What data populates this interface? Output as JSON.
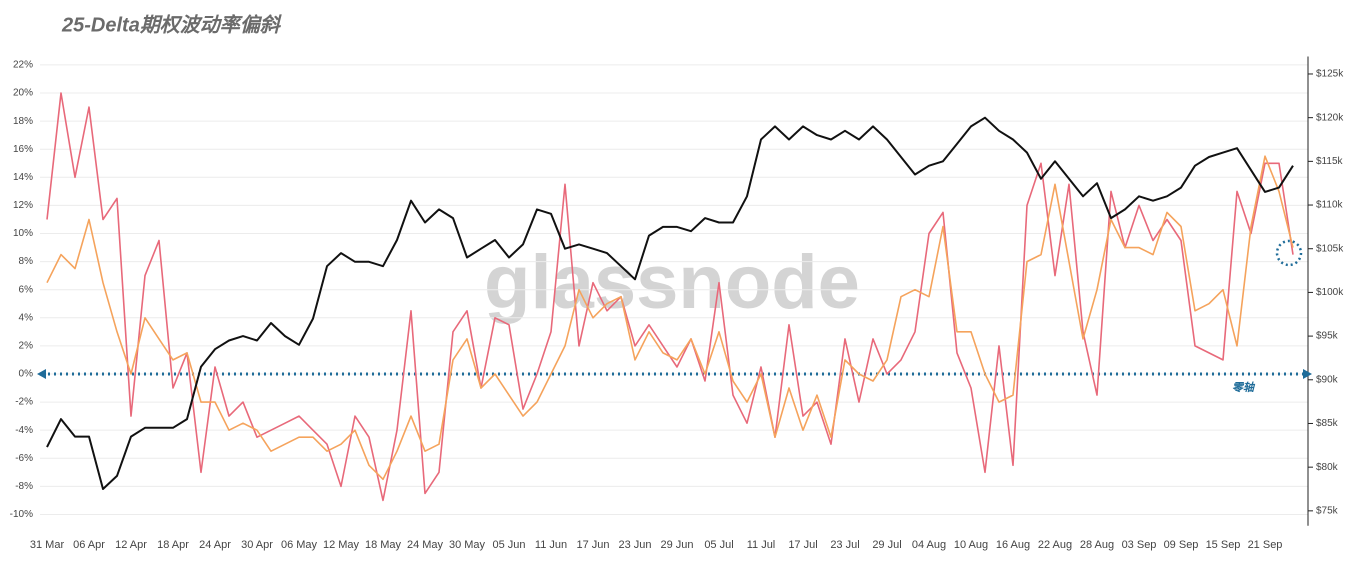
{
  "chart_data": {
    "type": "line",
    "title": "25-Delta期权波动率偏斜",
    "watermark": "glassnode",
    "annotation": "零轴",
    "categories": [
      "31 Mar",
      null,
      null,
      "06 Apr",
      null,
      null,
      "12 Apr",
      null,
      null,
      "18 Apr",
      null,
      null,
      "24 Apr",
      null,
      null,
      "30 Apr",
      null,
      null,
      "06 May",
      null,
      null,
      "12 May",
      null,
      null,
      "18 May",
      null,
      null,
      "24 May",
      null,
      null,
      "30 May",
      null,
      null,
      "05 Jun",
      null,
      null,
      "11 Jun",
      null,
      null,
      "17 Jun",
      null,
      null,
      "23 Jun",
      null,
      null,
      "29 Jun",
      null,
      null,
      "05 Jul",
      null,
      null,
      "11 Jul",
      null,
      null,
      "17 Jul",
      null,
      null,
      "23 Jul",
      null,
      null,
      "29 Jul",
      null,
      null,
      "04 Aug",
      null,
      null,
      "10 Aug",
      null,
      null,
      "16 Aug",
      null,
      null,
      "22 Aug",
      null,
      null,
      "28 Aug",
      null,
      null,
      "03 Sep",
      null,
      null,
      "09 Sep",
      null,
      null,
      "15 Sep",
      null,
      null,
      "21 Sep",
      null,
      null
    ],
    "series": [
      {
        "color": "#e8697a",
        "values": [
          11,
          20,
          14,
          19,
          11,
          12.5,
          -3,
          7,
          9.5,
          -1,
          1.5,
          -7,
          0.5,
          -3,
          -2,
          -4.5,
          -4,
          -3.5,
          -3,
          -4,
          -5,
          -8,
          -3,
          -4.5,
          -9,
          -4,
          4.5,
          -8.5,
          -7,
          3,
          4.5,
          -1,
          4,
          3.5,
          -2.5,
          0,
          3,
          13.5,
          2,
          6.5,
          4.5,
          5.5,
          2,
          3.5,
          2,
          0.5,
          2.5,
          -0.5,
          6.5,
          -1.5,
          -3.5,
          0.5,
          -4.5,
          3.5,
          -3,
          -2,
          -5,
          2.5,
          -2,
          2.5,
          0,
          1,
          3,
          10,
          11.5,
          1.5,
          -1,
          -7,
          2,
          -6.5,
          12,
          15,
          7,
          13.5,
          3,
          -1.5,
          13,
          9,
          12,
          9.5,
          11,
          9.5,
          2,
          1.5,
          1,
          13,
          10,
          15,
          15,
          8.5
        ]
      },
      {
        "color": "#f5a35c",
        "values": [
          6.5,
          8.5,
          7.5,
          11,
          6.5,
          3,
          0,
          4,
          2.5,
          1,
          1.5,
          -2,
          -2,
          -4,
          -3.5,
          -4,
          -5.5,
          -5,
          -4.5,
          -4.5,
          -5.5,
          -5,
          -4,
          -6.5,
          -7.5,
          -5.5,
          -3,
          -5.5,
          -5,
          1,
          2.5,
          -1,
          0,
          -1.5,
          -3,
          -2,
          0,
          2,
          6,
          4,
          5,
          5.5,
          1,
          3,
          1.5,
          1,
          2.5,
          0,
          3,
          -0.5,
          -2,
          0,
          -4.5,
          -1,
          -4,
          -1.5,
          -4.5,
          1,
          0,
          -0.5,
          1,
          5.5,
          6,
          5.5,
          10.5,
          3,
          3,
          0,
          -2,
          -1.5,
          8,
          8.5,
          13.5,
          8,
          2.5,
          6,
          11,
          9,
          9,
          8.5,
          11.5,
          10.5,
          4.5,
          5,
          6,
          2,
          10.5,
          15.5,
          13,
          9
        ]
      },
      {
        "color": "#111111",
        "axis": "y2",
        "values": [
          82.3,
          85.5,
          83.5,
          83.5,
          77.5,
          79,
          83.5,
          84.5,
          84.5,
          84.5,
          85.5,
          91.5,
          93.5,
          94.5,
          95,
          94.5,
          96.5,
          95,
          94,
          97,
          103,
          104.5,
          103.5,
          103.5,
          103,
          106,
          110.5,
          108,
          109.5,
          108.5,
          104,
          105,
          106,
          104,
          105.5,
          109.5,
          109,
          105,
          105.5,
          105,
          104.5,
          103,
          101.5,
          106.5,
          107.5,
          107.5,
          107,
          108.5,
          108,
          108,
          111,
          117.5,
          119,
          117.5,
          119,
          118,
          117.5,
          118.5,
          117.5,
          119,
          117.5,
          115.5,
          113.5,
          114.5,
          115,
          117,
          119,
          120,
          118.5,
          117.5,
          116,
          113,
          115,
          113,
          111,
          112.5,
          108.5,
          109.5,
          111,
          110.5,
          111,
          112,
          114.5,
          115.5,
          116,
          116.5,
          114,
          111.5,
          112,
          114.5
        ]
      }
    ],
    "ylim": [
      -10.8,
      22.6
    ],
    "yticks": [
      {
        "value": -10,
        "label": "-10%"
      },
      {
        "value": -8,
        "label": "-8%"
      },
      {
        "value": -6,
        "label": "-6%"
      },
      {
        "value": -4,
        "label": "-4%"
      },
      {
        "value": -2,
        "label": "-2%"
      },
      {
        "value": 0,
        "label": "0%"
      },
      {
        "value": 2,
        "label": "2%"
      },
      {
        "value": 4,
        "label": "4%"
      },
      {
        "value": 6,
        "label": "6%"
      },
      {
        "value": 8,
        "label": "8%"
      },
      {
        "value": 10,
        "label": "10%"
      },
      {
        "value": 12,
        "label": "12%"
      },
      {
        "value": 14,
        "label": "14%"
      },
      {
        "value": 16,
        "label": "16%"
      },
      {
        "value": 18,
        "label": "18%"
      },
      {
        "value": 20,
        "label": "20%"
      },
      {
        "value": 22,
        "label": "22%"
      }
    ],
    "y2lim": [
      73.3,
      127
    ],
    "y2ticks": [
      {
        "value": 75,
        "label": "$75k"
      },
      {
        "value": 80,
        "label": "$80k"
      },
      {
        "value": 85,
        "label": "$85k"
      },
      {
        "value": 90,
        "label": "$90k"
      },
      {
        "value": 95,
        "label": "$95k"
      },
      {
        "value": 100,
        "label": "$100k"
      },
      {
        "value": 105,
        "label": "$105k"
      },
      {
        "value": 110,
        "label": "$110k"
      },
      {
        "value": 115,
        "label": "$115k"
      },
      {
        "value": 120,
        "label": "$120k"
      },
      {
        "value": 125,
        "label": "$125k"
      }
    ],
    "grid": true
  }
}
